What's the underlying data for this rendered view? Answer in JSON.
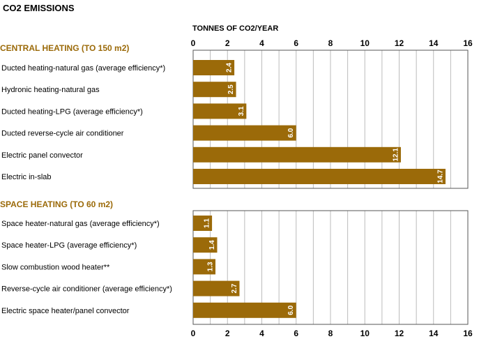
{
  "chart_data": {
    "type": "bar",
    "title": "CO2 EMISSIONS",
    "xlabel": "TONNES OF CO2/YEAR",
    "xlim": [
      0,
      16
    ],
    "xticks": [
      "0",
      "2",
      "4",
      "6",
      "8",
      "10",
      "12",
      "14",
      "16"
    ],
    "grid": true,
    "orientation": "horizontal",
    "colors": {
      "bar": "#9b6a09",
      "section": "#9b6a09",
      "grid": "#bbbbbb",
      "frame": "#555555"
    },
    "groups": [
      {
        "name": "CENTRAL HEATING (TO 150 m2)",
        "categories": [
          "Ducted heating-natural gas (average efficiency*)",
          "Hydronic heating-natural gas",
          "Ducted heating-LPG (average efficiency*)",
          "Ducted reverse-cycle air conditioner",
          "Electric panel convector",
          "Electric in-slab"
        ],
        "values": [
          2.4,
          2.5,
          3.1,
          6.0,
          12.1,
          14.7
        ],
        "labels": [
          "2.4",
          "2.5",
          "3.1",
          "6.0",
          "12.1",
          "14.7"
        ]
      },
      {
        "name": "SPACE HEATING (TO 60 m2)",
        "categories": [
          "Space heater-natural gas (average efficiency*)",
          "Space heater-LPG (average efficiency*)",
          "Slow combustion wood heater**",
          "Reverse-cycle air conditioner (average efficiency*)",
          "Electric space heater/panel convector"
        ],
        "values": [
          1.1,
          1.4,
          1.3,
          2.7,
          6.0
        ],
        "labels": [
          "1.1",
          "1.4",
          "1.3",
          "2.7",
          "6.0"
        ]
      }
    ]
  }
}
